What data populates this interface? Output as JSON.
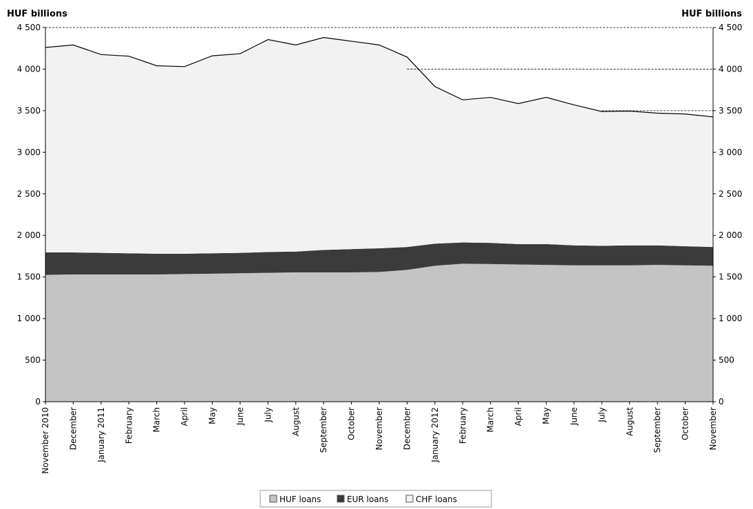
{
  "chart_data": {
    "type": "area",
    "stacked": true,
    "ylabel_left": "HUF billions",
    "ylabel_right": "HUF billions",
    "ylim": [
      0,
      4500
    ],
    "yticks": [
      {
        "value": 0,
        "label": "0"
      },
      {
        "value": 500,
        "label": "500"
      },
      {
        "value": 1000,
        "label": "1 000"
      },
      {
        "value": 1500,
        "label": "1 500"
      },
      {
        "value": 2000,
        "label": "2 000"
      },
      {
        "value": 2500,
        "label": "2 500"
      },
      {
        "value": 3000,
        "label": "3 000"
      },
      {
        "value": 3500,
        "label": "3 500"
      },
      {
        "value": 4000,
        "label": "4 000"
      },
      {
        "value": 4500,
        "label": "4 500"
      }
    ],
    "categories": [
      "November 2010",
      "December",
      "January 2011",
      "February",
      "March",
      "April",
      "May",
      "June",
      "July",
      "August",
      "September",
      "October",
      "November",
      "December",
      "January 2012",
      "February",
      "March",
      "April",
      "May",
      "June",
      "July",
      "August",
      "September",
      "October",
      "November"
    ],
    "series": [
      {
        "name": "HUF loans",
        "color": "#c4c4c4",
        "values": [
          1525,
          1530,
          1530,
          1530,
          1530,
          1535,
          1540,
          1545,
          1550,
          1555,
          1555,
          1555,
          1560,
          1585,
          1635,
          1660,
          1655,
          1650,
          1645,
          1640,
          1640,
          1640,
          1645,
          1640,
          1635
        ]
      },
      {
        "name": "EUR loans",
        "color": "#3b3b3b",
        "values": [
          270,
          265,
          260,
          255,
          250,
          245,
          245,
          245,
          250,
          250,
          270,
          280,
          285,
          275,
          265,
          255,
          255,
          245,
          250,
          240,
          235,
          240,
          235,
          230,
          225
        ]
      },
      {
        "name": "CHF loans",
        "color": "#f2f2f2",
        "values": [
          2465,
          2495,
          2385,
          2370,
          2260,
          2250,
          2375,
          2395,
          2555,
          2485,
          2555,
          2500,
          2445,
          2285,
          1890,
          1715,
          1750,
          1690,
          1765,
          1690,
          1615,
          1615,
          1590,
          1590,
          1565
        ]
      }
    ],
    "reference_lines": [
      {
        "value": 4500,
        "from": "November 2010",
        "to": "November",
        "style": "dashed"
      },
      {
        "value": 4000,
        "from": "December",
        "to": "November",
        "style": "dashed"
      },
      {
        "value": 3500,
        "from": "July",
        "to": "November",
        "style": "dashed"
      }
    ],
    "legend": {
      "position": "bottom-center",
      "items": [
        "HUF loans",
        "EUR loans",
        "CHF loans"
      ]
    },
    "grid": false
  }
}
